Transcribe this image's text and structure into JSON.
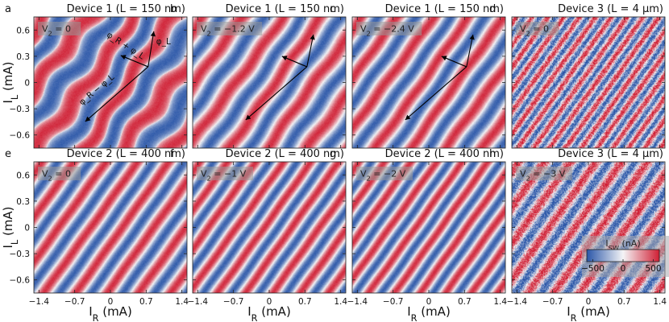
{
  "chart_data": {
    "type": "heatmap",
    "colorbar": {
      "label": "I_SW (nA)",
      "ticks": [
        "−500",
        "0",
        "500"
      ],
      "range": [
        -600,
        600
      ],
      "colors": {
        "low": "#2a56a8",
        "mid": "#f4f4f6",
        "high": "#d01f34"
      }
    },
    "axes": {
      "x_ticks": [
        "−1.4",
        "−0.7",
        "0",
        "0.7",
        "1.4"
      ],
      "y_ticks": [
        "0.6",
        "0.3",
        "0",
        "−0.3",
        "−0.6"
      ],
      "xlim": [
        -1.5,
        1.5
      ],
      "ylim": [
        -0.75,
        0.75
      ],
      "ylabel": "I_L (mA)",
      "xlabel": "I_R (mA)"
    },
    "panels": [
      {
        "letter": "a",
        "title": "Device 1 (L = 150 nm)",
        "v2": "V_2 = 0",
        "device": 1,
        "period": 44,
        "distort": 0.75,
        "noise": 0.05,
        "vectors": true,
        "vector_labels": [
          "φ_L",
          "φ_R + φ_L",
          "φ_R − φ_L"
        ]
      },
      {
        "letter": "b",
        "title": "Device 1 (L = 150 nm)",
        "v2": "V_2 = −1.2 V",
        "device": 1,
        "period": 40,
        "distort": 0.25,
        "noise": 0.05,
        "vectors": true,
        "vector_labels": []
      },
      {
        "letter": "c",
        "title": "Device 1 (L = 150 nm)",
        "v2": "V_2 = −2.4 V",
        "device": 1,
        "period": 36,
        "distort": 0.15,
        "noise": 0.05,
        "vectors": true,
        "vector_labels": []
      },
      {
        "letter": "d",
        "title": "Device 3 (L = 4 μm)",
        "v2": "V_2 = 0",
        "device": 3,
        "period": 16,
        "distort": 0.0,
        "noise": 0.45,
        "vectors": false,
        "vector_labels": []
      },
      {
        "letter": "e",
        "title": "Device 2 (L = 400 nm)",
        "v2": "V_2 = 0",
        "device": 2,
        "period": 32,
        "distort": 0.05,
        "noise": 0.05,
        "vectors": false,
        "vector_labels": []
      },
      {
        "letter": "f",
        "title": "Device 2 (L = 400 nm)",
        "v2": "V_2 = −1 V",
        "device": 2,
        "period": 28,
        "distort": 0.05,
        "noise": 0.05,
        "vectors": false,
        "vector_labels": []
      },
      {
        "letter": "g",
        "title": "Device 2 (L = 400 nm)",
        "v2": "V_2 = −2 V",
        "device": 2,
        "period": 26,
        "distort": 0.05,
        "noise": 0.05,
        "vectors": false,
        "vector_labels": []
      },
      {
        "letter": "h",
        "title": "Device 3 (L = 4 μm)",
        "v2": "V_2 = −3 V",
        "device": 3,
        "period": 26,
        "distort": 0.0,
        "noise": 0.45,
        "vectors": false,
        "vector_labels": []
      }
    ]
  }
}
